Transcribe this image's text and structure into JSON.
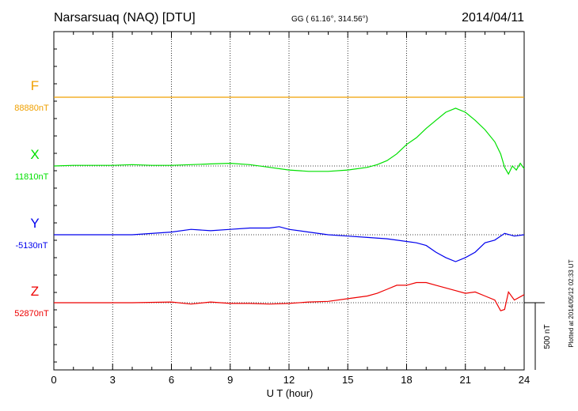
{
  "header": {
    "station": "Narsarsuaq (NAQ)  [DTU]",
    "coords": "GG ( 61.16°, 314.56°)",
    "date": "2014/04/11"
  },
  "footer": {
    "plotted": "Plotted at 2014/05/12 02:33 UT"
  },
  "chart_data": {
    "type": "line",
    "xlabel": "U T (hour)",
    "xlim": [
      0,
      24
    ],
    "xticks": [
      0,
      3,
      6,
      9,
      12,
      15,
      18,
      21,
      24
    ],
    "scale_bar_label": "500 nT",
    "scale_bar_nT": 500,
    "grid": true,
    "series": [
      {
        "name": "F",
        "baseline": "88880nT",
        "color": "#f0a000",
        "x": [
          0,
          24
        ],
        "y": [
          0,
          0
        ]
      },
      {
        "name": "X",
        "baseline": "11810nT",
        "color": "#00e000",
        "x": [
          0,
          1,
          2,
          3,
          4,
          5,
          6,
          7,
          8,
          9,
          10,
          11,
          12,
          13,
          14,
          15,
          16,
          16.5,
          17,
          17.5,
          18,
          18.5,
          19,
          19.5,
          20,
          20.5,
          21,
          21.5,
          22,
          22.5,
          22.8,
          23,
          23.2,
          23.4,
          23.6,
          23.8,
          24
        ],
        "y": [
          0,
          5,
          5,
          5,
          10,
          5,
          5,
          10,
          15,
          20,
          10,
          -10,
          -30,
          -40,
          -40,
          -30,
          -10,
          10,
          40,
          90,
          160,
          210,
          280,
          340,
          400,
          430,
          400,
          340,
          270,
          180,
          90,
          -10,
          -60,
          0,
          -30,
          20,
          -20
        ]
      },
      {
        "name": "Y",
        "baseline": "-5130nT",
        "color": "#0000ee",
        "x": [
          0,
          2,
          4,
          6,
          7,
          8,
          9,
          10,
          11,
          11.5,
          12,
          13,
          14,
          15,
          16,
          17,
          18,
          18.5,
          19,
          19.5,
          20,
          20.5,
          21,
          21.5,
          22,
          22.5,
          23,
          23.5,
          24
        ],
        "y": [
          0,
          0,
          0,
          20,
          40,
          30,
          40,
          50,
          50,
          60,
          40,
          20,
          0,
          -10,
          -20,
          -30,
          -50,
          -60,
          -80,
          -130,
          -170,
          -200,
          -170,
          -130,
          -60,
          -40,
          10,
          -10,
          0
        ]
      },
      {
        "name": "Z",
        "baseline": "52870nT",
        "color": "#ee0000",
        "x": [
          0,
          2,
          4,
          6,
          7,
          8,
          9,
          10,
          11,
          12,
          13,
          14,
          15,
          16,
          16.5,
          17,
          17.5,
          18,
          18.5,
          19,
          19.5,
          20,
          20.5,
          21,
          21.5,
          22,
          22.5,
          22.8,
          23,
          23.2,
          23.5,
          24
        ],
        "y": [
          0,
          0,
          0,
          5,
          -10,
          5,
          -5,
          -5,
          -10,
          -5,
          5,
          10,
          30,
          50,
          70,
          100,
          130,
          130,
          150,
          150,
          130,
          110,
          90,
          70,
          80,
          50,
          20,
          -60,
          -50,
          80,
          20,
          60
        ]
      }
    ]
  }
}
